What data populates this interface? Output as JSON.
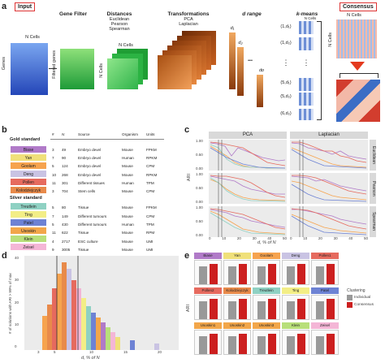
{
  "panel_a": {
    "letter": "a",
    "input_label": "Input",
    "consensus_label": "Consensus",
    "gene_filter": "Gene Filter",
    "distances_title": "Distances",
    "distances": [
      "Euclidean",
      "Pearson",
      "Spearman"
    ],
    "transformations_title": "Transformations",
    "transformations": [
      "PCA",
      "Laplacian"
    ],
    "d_range": "d range",
    "kmeans": "k-means",
    "n_cells": "N Cells",
    "genes": "Genes",
    "filtered_genes": "Filtered genes",
    "d_labels": [
      "d₁",
      "d₂",
      "•••",
      "dᴅ"
    ],
    "pairs": [
      "(1,d₁)",
      "(1,d₂)",
      "(5,d₁)",
      "(5,d₂)",
      "(6,d₂)"
    ],
    "ellipsis": "⋮",
    "colors": {
      "gene_matrix": "#3a6fd8",
      "filtered": "#3fbf4a",
      "distance": "#36c64a",
      "transform": "#b0501a",
      "arrow": "#e43a1e",
      "input_border": "#d33"
    }
  },
  "panel_b": {
    "letter": "b",
    "columns": [
      "#",
      "N",
      "Source",
      "Organism",
      "Units"
    ],
    "gold_title": "Gold standard",
    "silver_title": "Silver standard",
    "gold": [
      {
        "name": "Biase",
        "color": "#b07ac8",
        "num": "3",
        "n": "49",
        "source": "Embryo devel",
        "organism": "Mouse",
        "units": "FPKM"
      },
      {
        "name": "Yan",
        "color": "#f0e07a",
        "num": "7",
        "n": "90",
        "source": "Embryo devel",
        "organism": "Human",
        "units": "RPKM"
      },
      {
        "name": "Goolam",
        "color": "#f6a34e",
        "num": "5",
        "n": "124",
        "source": "Embryo devel",
        "organism": "Mouse",
        "units": "CPM"
      },
      {
        "name": "Deng",
        "color": "#c9c3e3",
        "num": "10",
        "n": "268",
        "source": "Embryo devel",
        "organism": "Mouse",
        "units": "RPKM"
      },
      {
        "name": "Pollen",
        "color": "#e66a5e",
        "num": "11",
        "n": "301",
        "source": "Different tissues",
        "organism": "Human",
        "units": "TPM"
      },
      {
        "name": "Kolodziejczyk",
        "color": "#e88a4a",
        "num": "3",
        "n": "704",
        "source": "Stem cells",
        "organism": "Mouse",
        "units": "CPM"
      }
    ],
    "silver": [
      {
        "name": "Treutlein",
        "color": "#8fd1c3",
        "num": "5",
        "n": "80",
        "source": "Tissue",
        "organism": "Mouse",
        "units": "FPKM"
      },
      {
        "name": "Ting",
        "color": "#f3ee86",
        "num": "7",
        "n": "149",
        "source": "Different tumours",
        "organism": "Mouse",
        "units": "CPM"
      },
      {
        "name": "Patel",
        "color": "#6d82d4",
        "num": "5",
        "n": "430",
        "source": "Different tumours",
        "organism": "Human",
        "units": "TPM"
      },
      {
        "name": "Usoskin",
        "color": "#f2a64a",
        "num": "11",
        "n": "622",
        "source": "Tissue",
        "organism": "Mouse",
        "units": "RPM"
      },
      {
        "name": "Klein",
        "color": "#b8df7a",
        "num": "4",
        "n": "2717",
        "source": "ESC culture",
        "organism": "Mouse",
        "units": "UMI"
      },
      {
        "name": "Zeisel",
        "color": "#f4b6d6",
        "num": "9",
        "n": "3005",
        "source": "Tissue",
        "organism": "Mouse",
        "units": "UMI"
      }
    ]
  },
  "panel_c": {
    "letter": "c",
    "col_strips": [
      "PCA",
      "Laplacian"
    ],
    "row_strips": [
      "Euclidean",
      "Pearson",
      "Spearman"
    ],
    "ylabel": "ARI",
    "xlabel": "d, % of N",
    "yticks": [
      "0.00",
      "0.25",
      "0.50",
      "0.75",
      "1.00"
    ],
    "xticks": [
      "0",
      "10",
      "20",
      "30",
      "40",
      "50"
    ]
  },
  "panel_d": {
    "letter": "d",
    "ylabel": "# of solutions with ARI > 99% of max",
    "xlabel": "d, % of N",
    "yticks": [
      "0",
      "10",
      "20",
      "30",
      "40"
    ],
    "xticks": [
      "3",
      "5",
      "10",
      "15",
      "20"
    ]
  },
  "panel_e": {
    "letter": "e",
    "ylabel": "ARI",
    "legend_title": "Clustering",
    "legend_items": [
      {
        "label": "Individual",
        "color": "#999999"
      },
      {
        "label": "Consensus",
        "color": "#cc1f1f"
      }
    ],
    "datasets": [
      "Biase",
      "Yan",
      "Goolam",
      "Deng",
      "Pollen1",
      "Pollen2",
      "Kolodziejczyk",
      "Treutlein",
      "Ting",
      "Patel",
      "Usoskin1",
      "Usoskin2",
      "Usoskin3",
      "Klein",
      "Zeisel"
    ],
    "dataset_colors": [
      "#b07ac8",
      "#f0e07a",
      "#f6a34e",
      "#c9c3e3",
      "#e66a5e",
      "#e66a5e",
      "#e88a4a",
      "#8fd1c3",
      "#f3ee86",
      "#6d82d4",
      "#f2a64a",
      "#f2a64a",
      "#f2a64a",
      "#b8df7a",
      "#f4b6d6"
    ],
    "yticks": [
      "0",
      "1"
    ]
  }
}
